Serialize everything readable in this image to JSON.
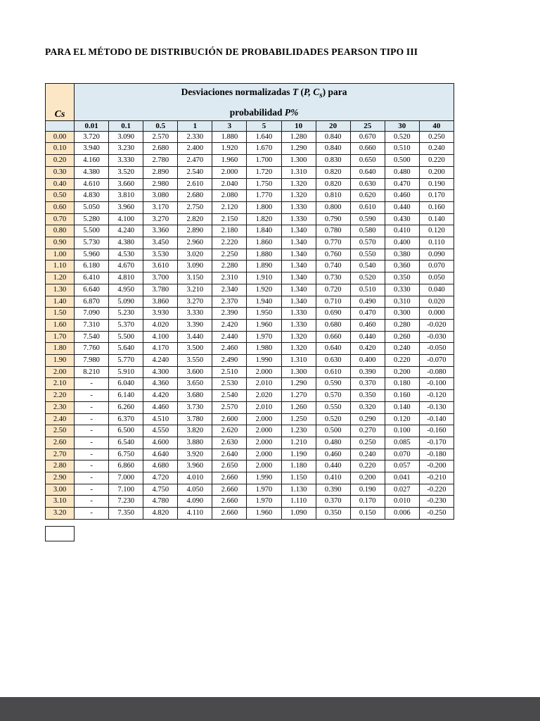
{
  "page": {
    "title": "PARA EL MÉTODO DE DISTRIBUCIÓN DE PROBABILIDADES PEARSON TIPO III"
  },
  "colors": {
    "header_blue": "#DEEAF2",
    "cs_tan": "#FBE7C6",
    "footer_gray": "#4A4A4C",
    "border": "#1a1a1a"
  },
  "table": {
    "cs_label": "Cs",
    "header": {
      "t1": "Desviaciones normalizadas ",
      "t2": "T",
      "t3": "  (",
      "t4": "P, C",
      "t5": "s",
      "t6": ") para",
      "t7": "probabilidad ",
      "t8": "P%"
    },
    "columns": [
      "0.01",
      "0.1",
      "0.5",
      "1",
      "3",
      "5",
      "10",
      "20",
      "25",
      "30",
      "40"
    ],
    "rows": [
      [
        "0.00",
        "3.720",
        "3.090",
        "2.570",
        "2.330",
        "1.880",
        "1.640",
        "1.280",
        "0.840",
        "0.670",
        "0.520",
        "0.250"
      ],
      [
        "0.10",
        "3.940",
        "3.230",
        "2.680",
        "2.400",
        "1.920",
        "1.670",
        "1.290",
        "0.840",
        "0.660",
        "0.510",
        "0.240"
      ],
      [
        "0.20",
        "4.160",
        "3.330",
        "2.780",
        "2.470",
        "1.960",
        "1.700",
        "1.300",
        "0.830",
        "0.650",
        "0.500",
        "0.220"
      ],
      [
        "0.30",
        "4.380",
        "3.520",
        "2.890",
        "2.540",
        "2.000",
        "1.720",
        "1.310",
        "0.820",
        "0.640",
        "0.480",
        "0.200"
      ],
      [
        "0.40",
        "4.610",
        "3.660",
        "2.980",
        "2.610",
        "2.040",
        "1.750",
        "1.320",
        "0.820",
        "0.630",
        "0.470",
        "0.190"
      ],
      [
        "0.50",
        "4.830",
        "3.810",
        "3.080",
        "2.680",
        "2.080",
        "1.770",
        "1.320",
        "0.810",
        "0.620",
        "0.460",
        "0.170"
      ],
      [
        "0.60",
        "5.050",
        "3.960",
        "3.170",
        "2.750",
        "2.120",
        "1.800",
        "1.330",
        "0.800",
        "0.610",
        "0.440",
        "0.160"
      ],
      [
        "0.70",
        "5.280",
        "4.100",
        "3.270",
        "2.820",
        "2.150",
        "1.820",
        "1.330",
        "0.790",
        "0.590",
        "0.430",
        "0.140"
      ],
      [
        "0.80",
        "5.500",
        "4.240",
        "3.360",
        "2.890",
        "2.180",
        "1.840",
        "1.340",
        "0.780",
        "0.580",
        "0.410",
        "0.120"
      ],
      [
        "0.90",
        "5.730",
        "4.380",
        "3.450",
        "2.960",
        "2.220",
        "1.860",
        "1.340",
        "0.770",
        "0.570",
        "0.400",
        "0.110"
      ],
      [
        "1.00",
        "5.960",
        "4.530",
        "3.530",
        "3.020",
        "2.250",
        "1.880",
        "1.340",
        "0.760",
        "0.550",
        "0.380",
        "0.090"
      ],
      [
        "1.10",
        "6.180",
        "4.670",
        "3.610",
        "3.090",
        "2.280",
        "1.890",
        "1.340",
        "0.740",
        "0.540",
        "0.360",
        "0.070"
      ],
      [
        "1.20",
        "6.410",
        "4.810",
        "3.700",
        "3.150",
        "2.310",
        "1.910",
        "1.340",
        "0.730",
        "0.520",
        "0.350",
        "0.050"
      ],
      [
        "1.30",
        "6.640",
        "4.950",
        "3.780",
        "3.210",
        "2.340",
        "1.920",
        "1.340",
        "0.720",
        "0.510",
        "0.330",
        "0.040"
      ],
      [
        "1.40",
        "6.870",
        "5.090",
        "3.860",
        "3.270",
        "2.370",
        "1.940",
        "1.340",
        "0.710",
        "0.490",
        "0.310",
        "0.020"
      ],
      [
        "1.50",
        "7.090",
        "5.230",
        "3.930",
        "3.330",
        "2.390",
        "1.950",
        "1.330",
        "0.690",
        "0.470",
        "0.300",
        "0.000"
      ],
      [
        "1.60",
        "7.310",
        "5.370",
        "4.020",
        "3.390",
        "2.420",
        "1.960",
        "1.330",
        "0.680",
        "0.460",
        "0.280",
        "-0.020"
      ],
      [
        "1.70",
        "7.540",
        "5.500",
        "4.100",
        "3.440",
        "2.440",
        "1.970",
        "1.320",
        "0.660",
        "0.440",
        "0.260",
        "-0.030"
      ],
      [
        "1.80",
        "7.760",
        "5.640",
        "4.170",
        "3.500",
        "2.460",
        "1.980",
        "1.320",
        "0.640",
        "0.420",
        "0.240",
        "-0.050"
      ],
      [
        "1.90",
        "7.980",
        "5.770",
        "4.240",
        "3.550",
        "2.490",
        "1.990",
        "1.310",
        "0.630",
        "0.400",
        "0.220",
        "-0.070"
      ],
      [
        "2.00",
        "8.210",
        "5.910",
        "4.300",
        "3.600",
        "2.510",
        "2.000",
        "1.300",
        "0.610",
        "0.390",
        "0.200",
        "-0.080"
      ],
      [
        "2.10",
        "-",
        "6.040",
        "4.360",
        "3.650",
        "2.530",
        "2.010",
        "1.290",
        "0.590",
        "0.370",
        "0.180",
        "-0.100"
      ],
      [
        "2.20",
        "-",
        "6.140",
        "4.420",
        "3.680",
        "2.540",
        "2.020",
        "1.270",
        "0.570",
        "0.350",
        "0.160",
        "-0.120"
      ],
      [
        "2.30",
        "-",
        "6.260",
        "4.460",
        "3.730",
        "2.570",
        "2.010",
        "1.260",
        "0.550",
        "0.320",
        "0.140",
        "-0.130"
      ],
      [
        "2.40",
        "-",
        "6.370",
        "4.510",
        "3.780",
        "2.600",
        "2.000",
        "1.250",
        "0.520",
        "0.290",
        "0.120",
        "-0.140"
      ],
      [
        "2.50",
        "-",
        "6.500",
        "4.550",
        "3.820",
        "2.620",
        "2.000",
        "1.230",
        "0.500",
        "0.270",
        "0.100",
        "-0.160"
      ],
      [
        "2.60",
        "-",
        "6.540",
        "4.600",
        "3.880",
        "2.630",
        "2.000",
        "1.210",
        "0.480",
        "0.250",
        "0.085",
        "-0.170"
      ],
      [
        "2.70",
        "-",
        "6.750",
        "4.640",
        "3.920",
        "2.640",
        "2.000",
        "1.190",
        "0.460",
        "0.240",
        "0.070",
        "-0.180"
      ],
      [
        "2.80",
        "-",
        "6.860",
        "4.680",
        "3.960",
        "2.650",
        "2.000",
        "1.180",
        "0.440",
        "0.220",
        "0.057",
        "-0.200"
      ],
      [
        "2.90",
        "-",
        "7.000",
        "4.720",
        "4.010",
        "2.660",
        "1.990",
        "1.150",
        "0.410",
        "0.200",
        "0.041",
        "-0.210"
      ],
      [
        "3.00",
        "-",
        "7.100",
        "4.750",
        "4.050",
        "2.660",
        "1.970",
        "1.130",
        "0.390",
        "0.190",
        "0.027",
        "-0.220"
      ],
      [
        "3.10",
        "-",
        "7.230",
        "4.780",
        "4.090",
        "2.660",
        "1.970",
        "1.110",
        "0.370",
        "0.170",
        "0.010",
        "-0.230"
      ],
      [
        "3.20",
        "-",
        "7.350",
        "4.820",
        "4.110",
        "2.660",
        "1.960",
        "1.090",
        "0.350",
        "0.150",
        "0.006",
        "-0.250"
      ]
    ]
  }
}
